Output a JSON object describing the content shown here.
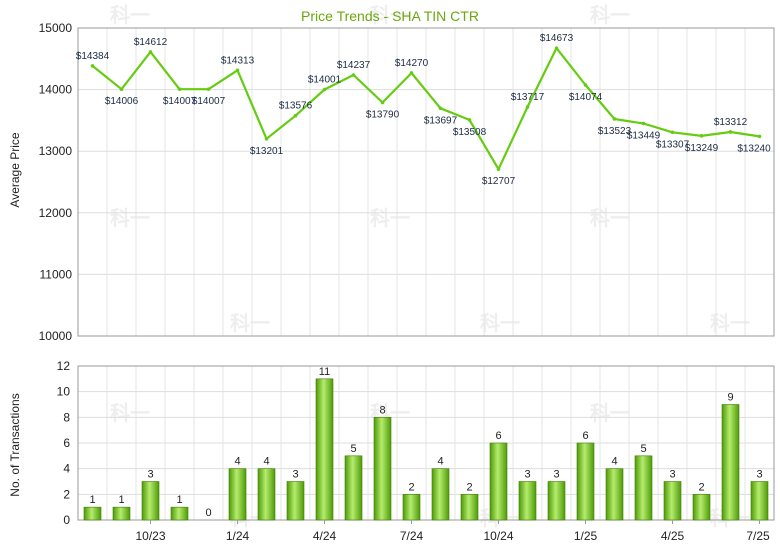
{
  "chart_data": [
    {
      "type": "line",
      "title": "Price Trends - SHA TIN CTR",
      "ylabel": "Average Price",
      "ylim": [
        10000,
        15000
      ],
      "yticks": [
        10000,
        11000,
        12000,
        13000,
        14000,
        15000
      ],
      "grid": true,
      "colors": {
        "line": "#66cc11"
      },
      "series": [
        {
          "values": [
            14384,
            14006,
            14612,
            14007,
            14007,
            14313,
            13201,
            13576,
            14001,
            14237,
            13790,
            14270,
            13697,
            13508,
            12707,
            13717,
            14673,
            14074,
            13523,
            13449,
            13307,
            13249,
            13312,
            13240
          ]
        }
      ],
      "labels": [
        "$14384",
        "$14006",
        "$14612",
        "$14007",
        "$14007",
        "$14313",
        "$13201",
        "$13576",
        "$14001",
        "$14237",
        "$13790",
        "$14270",
        "$13697",
        "$13508",
        "$12707",
        "$13717",
        "$14673",
        "$14074",
        "$13523",
        "$13449",
        "$13307",
        "$13249",
        "$13312",
        "$13240"
      ]
    },
    {
      "type": "bar",
      "ylabel": "No. of Transactions",
      "ylim": [
        0,
        12
      ],
      "yticks": [
        0,
        2,
        4,
        6,
        8,
        10,
        12
      ],
      "grid": true,
      "colors": {
        "bar_light": "#b5ec6e",
        "bar_dark": "#4e9a06",
        "bar_edge": "#3f7f05"
      },
      "x_tick_labels": [
        {
          "index": 2,
          "label": "10/23"
        },
        {
          "index": 5,
          "label": "1/24"
        },
        {
          "index": 8,
          "label": "4/24"
        },
        {
          "index": 11,
          "label": "7/24"
        },
        {
          "index": 14,
          "label": "10/24"
        },
        {
          "index": 17,
          "label": "1/25"
        },
        {
          "index": 20,
          "label": "4/25"
        },
        {
          "index": 23,
          "label": "7/25"
        }
      ],
      "series": [
        {
          "values": [
            1,
            1,
            3,
            1,
            0,
            4,
            4,
            3,
            11,
            5,
            8,
            2,
            4,
            2,
            6,
            3,
            3,
            6,
            4,
            5,
            3,
            2,
            9,
            3
          ]
        }
      ]
    }
  ],
  "watermark": "科一"
}
